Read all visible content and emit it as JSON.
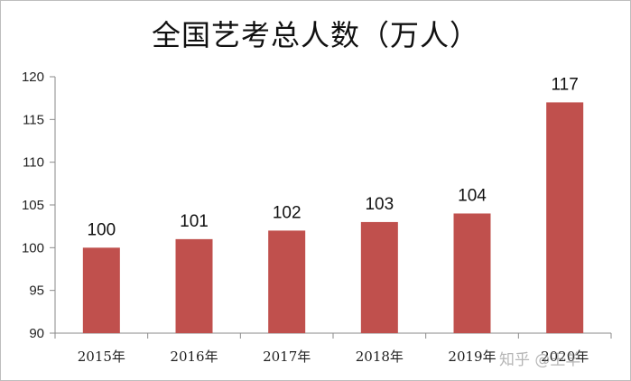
{
  "chart_data": {
    "type": "bar",
    "title": "全国艺考总人数（万人）",
    "categories": [
      "2015年",
      "2016年",
      "2017年",
      "2018年",
      "2019年",
      "2020年"
    ],
    "values": [
      100,
      101,
      102,
      103,
      104,
      117
    ],
    "data_labels": [
      "100",
      "101",
      "102",
      "103",
      "104",
      "117"
    ],
    "ylim": [
      90,
      120
    ],
    "yticks": [
      90,
      95,
      100,
      105,
      110,
      115,
      120
    ],
    "grid": false,
    "legend": "none",
    "bar_color": "#c0504d"
  },
  "watermark": "知乎 @王羊"
}
